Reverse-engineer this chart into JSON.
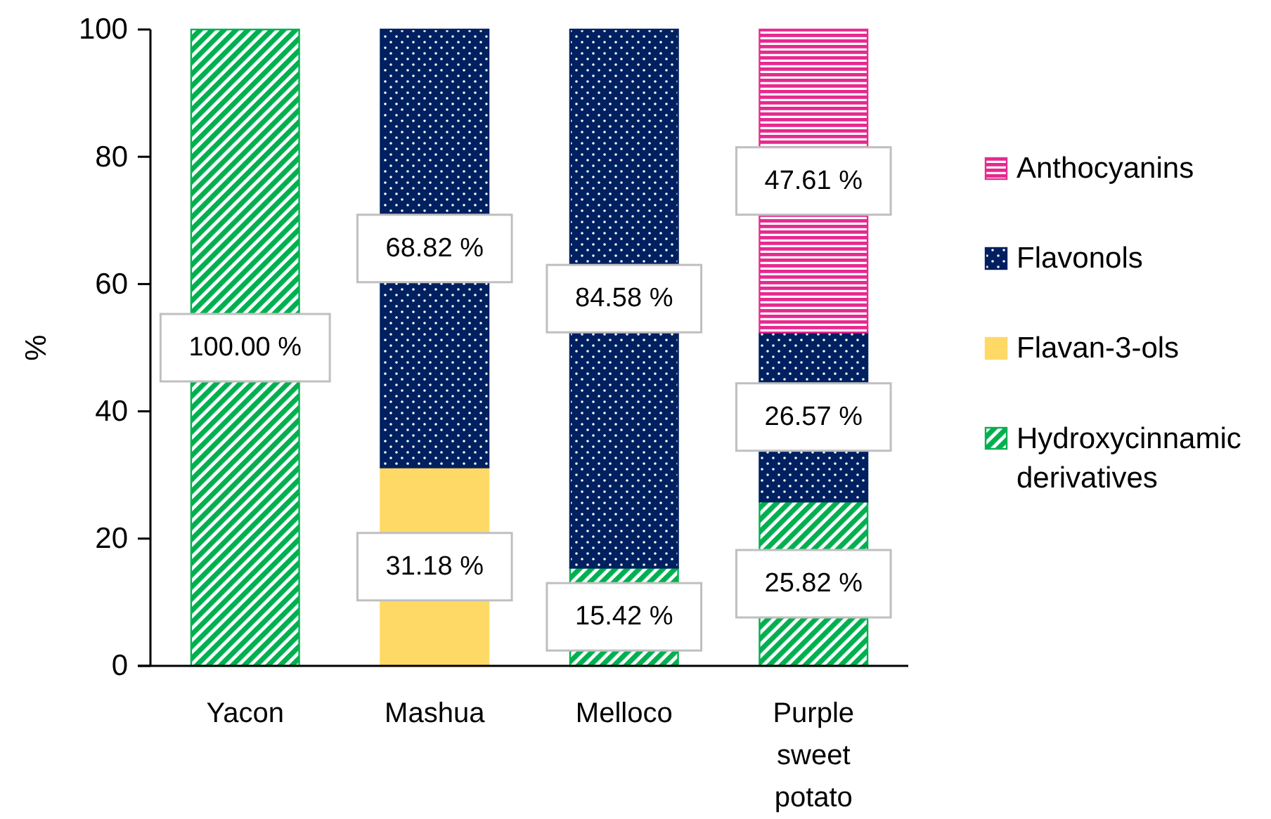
{
  "chart_data": {
    "type": "bar",
    "stacked": true,
    "ylabel": "%",
    "categories": [
      "Yacon",
      "Mashua",
      "Melloco",
      "Purple sweet potato"
    ],
    "series": [
      {
        "name": "Hydroxycinnamic derivatives",
        "color": "#00b050",
        "values": [
          100,
          null,
          15.42,
          25.82
        ],
        "value_labels": [
          "100.00 %",
          null,
          "15.42 %",
          "25.82 %"
        ]
      },
      {
        "name": "Flavan-3-ols",
        "color": "#ffd966",
        "values": [
          null,
          31.18,
          null,
          null
        ],
        "value_labels": [
          null,
          "31.18 %",
          null,
          null
        ]
      },
      {
        "name": "Flavonols",
        "color": "#002060",
        "values": [
          null,
          68.82,
          84.58,
          26.57
        ],
        "value_labels": [
          null,
          "68.82 %",
          "84.58 %",
          "26.57 %"
        ]
      },
      {
        "name": "Anthocyanins",
        "color": "#e8288f",
        "values": [
          null,
          null,
          null,
          47.61
        ],
        "value_labels": [
          null,
          null,
          null,
          "47.61 %"
        ]
      }
    ],
    "ylim": [
      0,
      100
    ],
    "yticks": [
      0,
      20,
      40,
      60,
      80,
      100
    ],
    "legend": "right"
  }
}
